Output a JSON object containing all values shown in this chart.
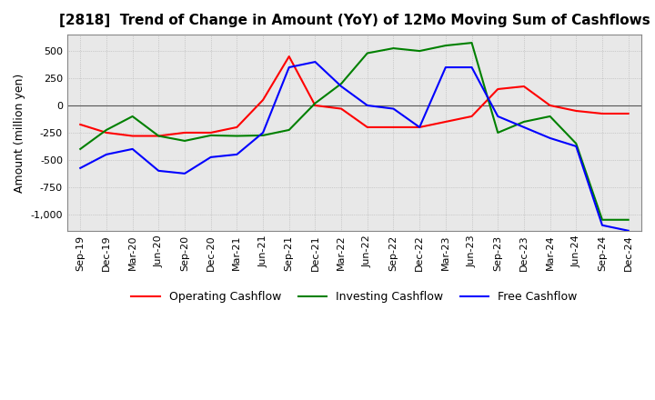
{
  "title": "[2818]  Trend of Change in Amount (YoY) of 12Mo Moving Sum of Cashflows",
  "ylabel": "Amount (million yen)",
  "x_labels": [
    "Sep-19",
    "Dec-19",
    "Mar-20",
    "Jun-20",
    "Sep-20",
    "Dec-20",
    "Mar-21",
    "Jun-21",
    "Sep-21",
    "Dec-21",
    "Mar-22",
    "Jun-22",
    "Sep-22",
    "Dec-22",
    "Mar-23",
    "Jun-23",
    "Sep-23",
    "Dec-23",
    "Mar-24",
    "Jun-24",
    "Sep-24",
    "Dec-24"
  ],
  "operating": [
    -175,
    -250,
    -280,
    -280,
    -250,
    -250,
    -200,
    50,
    450,
    0,
    -30,
    -200,
    -200,
    -200,
    -150,
    -100,
    150,
    175,
    0,
    -50,
    -75,
    -75
  ],
  "investing": [
    -400,
    -225,
    -100,
    -280,
    -325,
    -275,
    -280,
    -275,
    -225,
    20,
    200,
    480,
    525,
    500,
    550,
    575,
    -250,
    -150,
    -100,
    -350,
    -1050,
    -1050
  ],
  "free": [
    -575,
    -450,
    -400,
    -600,
    -625,
    -475,
    -450,
    -250,
    350,
    400,
    175,
    0,
    -30,
    -200,
    350,
    350,
    -100,
    -200,
    -300,
    -375,
    -1100,
    -1150
  ],
  "operating_color": "#ff0000",
  "investing_color": "#008000",
  "free_color": "#0000ff",
  "ylim": [
    -1150,
    650
  ],
  "yticks": [
    500,
    250,
    0,
    -250,
    -500,
    -750,
    -1000
  ],
  "background_color": "#ffffff",
  "grid_color": "#b0b0b0",
  "title_fontsize": 11,
  "axis_fontsize": 9,
  "tick_fontsize": 8,
  "legend_fontsize": 9
}
